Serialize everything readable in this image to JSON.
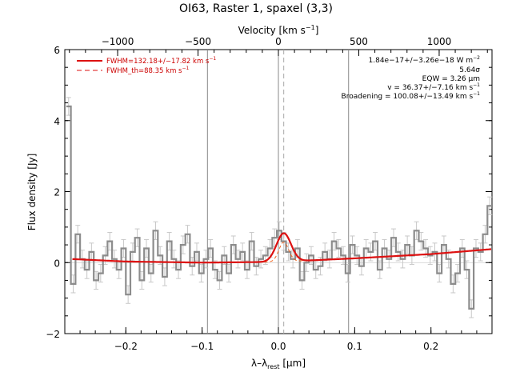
{
  "title": "OI63, Raster 1, spaxel (3,3)",
  "chart_data": {
    "type": "line",
    "title": "OI63, Raster 1, spaxel (3,3)",
    "xlabel": "λ–λ",
    "xlabel_sub": "rest",
    "xlabel_unit_pre": " [",
    "xlabel_unit": "μm",
    "xlabel_unit_post": "]",
    "ylabel": "Flux density [Jy]",
    "top_label": "Velocity [km s",
    "top_label_exp": "−1",
    "top_label_post": "]",
    "xlim": [
      -0.28,
      0.28
    ],
    "ylim": [
      -2,
      6
    ],
    "x_ticks": [
      -0.2,
      -0.1,
      0.0,
      0.1,
      0.2
    ],
    "x_tick_labels": [
      "−0.2",
      "−0.1",
      "0.0",
      "0.1",
      "0.2"
    ],
    "y_ticks": [
      -2,
      0,
      2,
      4,
      6
    ],
    "y_tick_labels": [
      "−2",
      "0",
      "2",
      "4",
      "6"
    ],
    "velocity_ticks": [
      -1000,
      -500,
      0,
      500,
      1000
    ],
    "velocity_tick_labels": [
      "−1000",
      "−500",
      "0",
      "500",
      "1000"
    ],
    "vertical_lines": [
      -0.093,
      0.0,
      0.092
    ],
    "line_center": 0.0,
    "legend": [
      {
        "label": "FWHM=132.18+/−17.82 km s",
        "exp": "−1",
        "style": "solid",
        "color": "#cc0000"
      },
      {
        "label": "FWHM_th=88.35 km s",
        "exp": "−1",
        "style": "dashed",
        "color": "#cc0000"
      }
    ],
    "annotations": [
      "1.84e−17+/−3.26e−18 W m",
      "5.64σ",
      "EQW = 3.26 μm",
      "v = 36.37+/−7.16 km s",
      "Broadening = 100.08+/−13.49 km s"
    ],
    "annotation_exps": [
      "−2",
      "",
      "",
      "−1",
      "−1"
    ],
    "spectrum": {
      "name": "data",
      "color": "#8c8c8c",
      "x": [
        -0.275,
        -0.269,
        -0.263,
        -0.257,
        -0.251,
        -0.245,
        -0.239,
        -0.233,
        -0.227,
        -0.221,
        -0.215,
        -0.209,
        -0.203,
        -0.197,
        -0.191,
        -0.185,
        -0.179,
        -0.173,
        -0.167,
        -0.161,
        -0.155,
        -0.149,
        -0.143,
        -0.137,
        -0.131,
        -0.125,
        -0.119,
        -0.113,
        -0.107,
        -0.101,
        -0.095,
        -0.089,
        -0.083,
        -0.077,
        -0.071,
        -0.065,
        -0.059,
        -0.053,
        -0.047,
        -0.041,
        -0.035,
        -0.029,
        -0.023,
        -0.017,
        -0.011,
        -0.005,
        0.001,
        0.007,
        0.013,
        0.019,
        0.025,
        0.031,
        0.037,
        0.043,
        0.049,
        0.055,
        0.061,
        0.067,
        0.073,
        0.079,
        0.085,
        0.091,
        0.097,
        0.103,
        0.109,
        0.115,
        0.121,
        0.127,
        0.133,
        0.139,
        0.145,
        0.151,
        0.157,
        0.163,
        0.169,
        0.175,
        0.181,
        0.187,
        0.193,
        0.199,
        0.205,
        0.211,
        0.217,
        0.223,
        0.229,
        0.235,
        0.241,
        0.247,
        0.253,
        0.259,
        0.265,
        0.271,
        0.277
      ],
      "y": [
        4.4,
        -0.6,
        0.8,
        0.1,
        -0.2,
        0.3,
        -0.5,
        -0.3,
        0.2,
        0.6,
        0.1,
        -0.2,
        0.4,
        -0.9,
        0.3,
        0.7,
        -0.5,
        0.4,
        -0.3,
        0.9,
        0.2,
        -0.4,
        0.6,
        0.1,
        -0.2,
        0.5,
        0.8,
        -0.1,
        0.3,
        -0.3,
        0.1,
        0.4,
        -0.2,
        -0.5,
        0.2,
        -0.3,
        0.5,
        0.1,
        0.3,
        -0.2,
        0.6,
        -0.1,
        0.1,
        0.2,
        0.4,
        0.7,
        0.9,
        0.6,
        0.3,
        0.1,
        0.4,
        -0.5,
        0.0,
        0.2,
        -0.2,
        -0.1,
        0.3,
        0.1,
        0.6,
        0.4,
        0.2,
        -0.3,
        0.5,
        0.2,
        -0.1,
        0.4,
        0.3,
        0.6,
        -0.2,
        0.4,
        0.1,
        0.7,
        0.3,
        0.1,
        0.5,
        0.2,
        0.9,
        0.6,
        0.4,
        0.2,
        0.3,
        -0.3,
        0.5,
        0.1,
        -0.6,
        -0.3,
        0.4,
        -0.2,
        -1.3,
        0.4,
        0.3,
        0.8,
        1.6
      ],
      "err": 0.25
    },
    "fit": {
      "name": "fit",
      "color": "#dd1111",
      "baseline": [
        [
          -0.27,
          0.1
        ],
        [
          -0.2,
          0.03
        ],
        [
          -0.1,
          0.0
        ],
        [
          0.0,
          0.02
        ],
        [
          0.1,
          0.12
        ],
        [
          0.2,
          0.24
        ],
        [
          0.28,
          0.38
        ]
      ],
      "gaussian": {
        "center": 0.007,
        "amp": 0.8,
        "sigma": 0.0095
      },
      "gaussian_th": {
        "center": 0.007,
        "amp": 0.55,
        "sigma": 0.0064
      }
    }
  }
}
